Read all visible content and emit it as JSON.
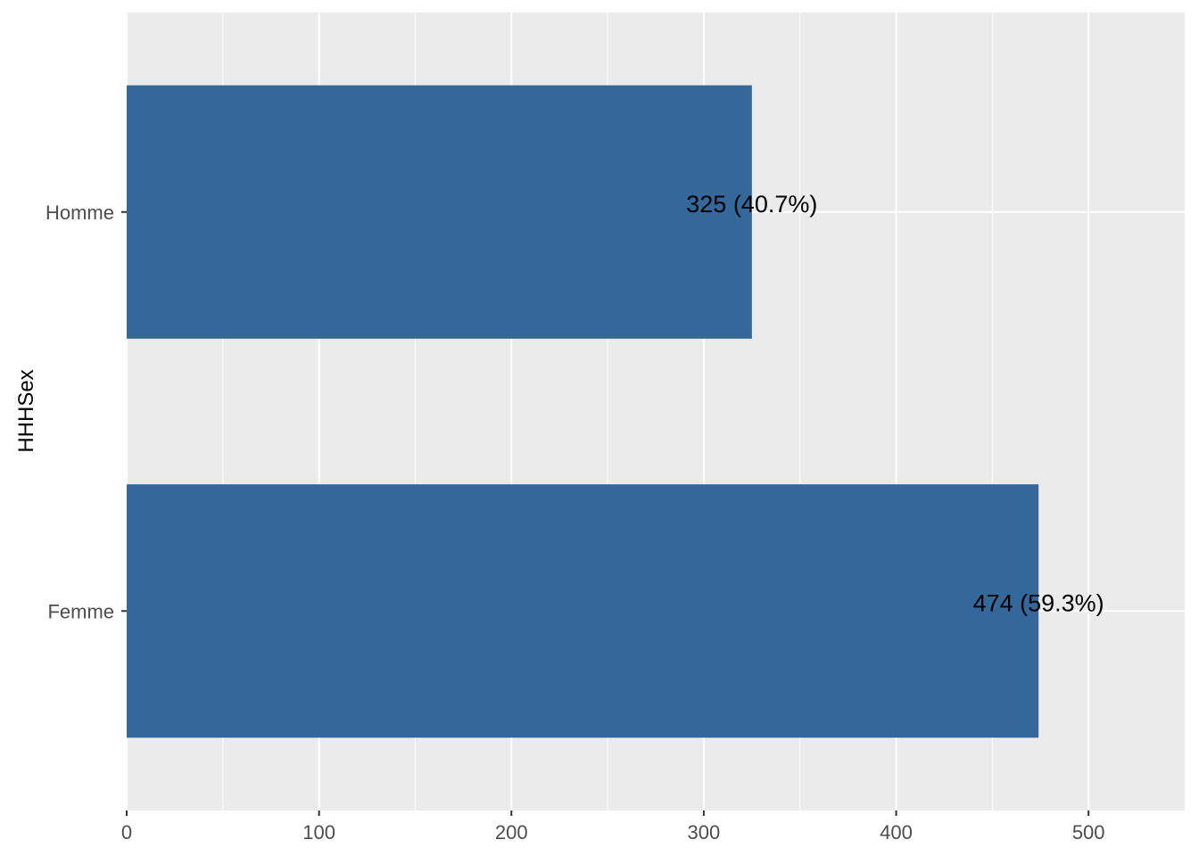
{
  "chart_data": {
    "type": "bar",
    "orientation": "horizontal",
    "categories": [
      "Homme",
      "Femme"
    ],
    "values": [
      325,
      474
    ],
    "data_labels": [
      "325 (40.7%)",
      "474 (59.3%)"
    ],
    "xlabel": "",
    "ylabel": "HHHSex",
    "xlim": [
      0,
      550
    ],
    "x_ticks": [
      0,
      100,
      200,
      300,
      400,
      500
    ],
    "x_tick_labels": [
      "0",
      "100",
      "200",
      "300",
      "400",
      "500"
    ],
    "grid": true,
    "legend": "none",
    "colors": {
      "bar": "#34689A",
      "panel": "#EBEBEB",
      "grid": "#FFFFFF",
      "label": "#000000",
      "tick_text": "#4D4D4D"
    }
  }
}
